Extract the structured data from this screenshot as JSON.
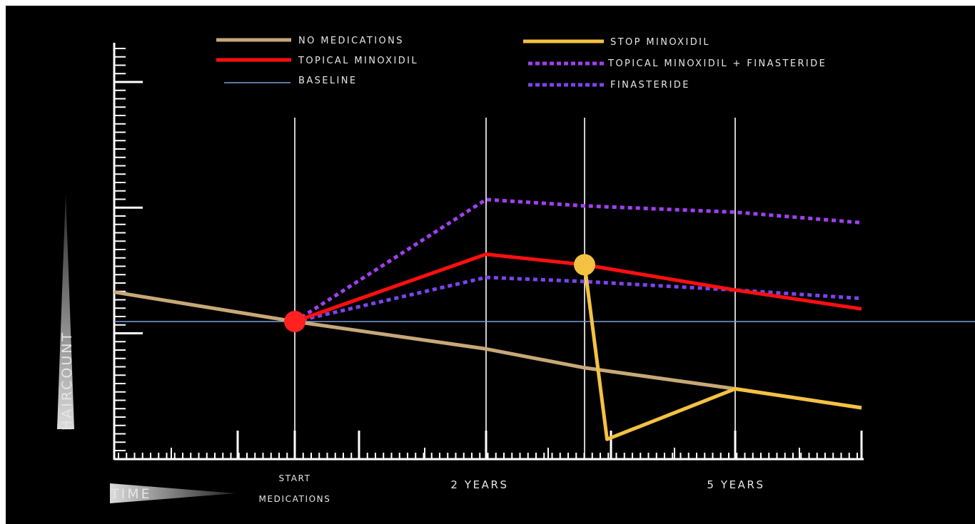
{
  "chart_data": {
    "type": "line",
    "title": "",
    "ylabel": "HAIRCOUNT",
    "xlabel": "TIME",
    "grid": false,
    "legend_position": "top",
    "x_labels": {
      "start_top": "START",
      "start_bottom": "MEDICATIONS",
      "year2": "2 YEARS",
      "year5": "5 YEARS"
    },
    "events": {
      "start_medications": 1.5,
      "year2": 2,
      "stop_minoxidil": 3.06,
      "year5": 5
    },
    "xlim": [
      0,
      6.3
    ],
    "ylim": [
      -3,
      6
    ],
    "series": [
      {
        "name": "NO MEDICATIONS",
        "color": "#c8a878",
        "style": "solid",
        "points": [
          [
            0,
            0.7
          ],
          [
            1.5,
            0
          ],
          [
            2,
            -0.65
          ],
          [
            3.06,
            -1.1
          ],
          [
            5,
            -1.6
          ],
          [
            6.3,
            -2.05
          ]
        ]
      },
      {
        "name": "TOPICAL MINOXIDIL",
        "color": "#ff0f0f",
        "style": "solid",
        "points": [
          [
            1.5,
            0
          ],
          [
            2,
            1.6
          ],
          [
            3.06,
            1.35
          ],
          [
            5,
            0.75
          ],
          [
            6.3,
            0.3
          ]
        ]
      },
      {
        "name": "BASELINE",
        "color": "#7aa0e0",
        "style": "thin",
        "points": [
          [
            0,
            0
          ],
          [
            6.3,
            0
          ]
        ]
      },
      {
        "name": "STOP MINOXIDIL",
        "color": "#f4c242",
        "style": "solid",
        "points": [
          [
            3.06,
            1.35
          ],
          [
            3.35,
            -2.8
          ],
          [
            5,
            -1.6
          ],
          [
            6.3,
            -2.05
          ]
        ]
      },
      {
        "name": "TOPICAL MINOXIDIL + FINASTERIDE",
        "color": "#a040f0",
        "style": "dotted",
        "points": [
          [
            1.5,
            0
          ],
          [
            2,
            2.9
          ],
          [
            3.06,
            2.75
          ],
          [
            5,
            2.6
          ],
          [
            6.3,
            2.35
          ]
        ]
      },
      {
        "name": "FINASTERIDE",
        "color": "#7a44ee",
        "style": "dotted",
        "points": [
          [
            1.5,
            0
          ],
          [
            2,
            1.05
          ],
          [
            3.06,
            0.95
          ],
          [
            5,
            0.75
          ],
          [
            6.3,
            0.55
          ]
        ]
      }
    ],
    "markers": [
      {
        "series": "TOPICAL MINOXIDIL",
        "x": 1.5,
        "y": 0,
        "color": "#ff2020"
      },
      {
        "series": "STOP MINOXIDIL",
        "x": 3.06,
        "y": 1.35,
        "color": "#f4c242"
      }
    ]
  }
}
